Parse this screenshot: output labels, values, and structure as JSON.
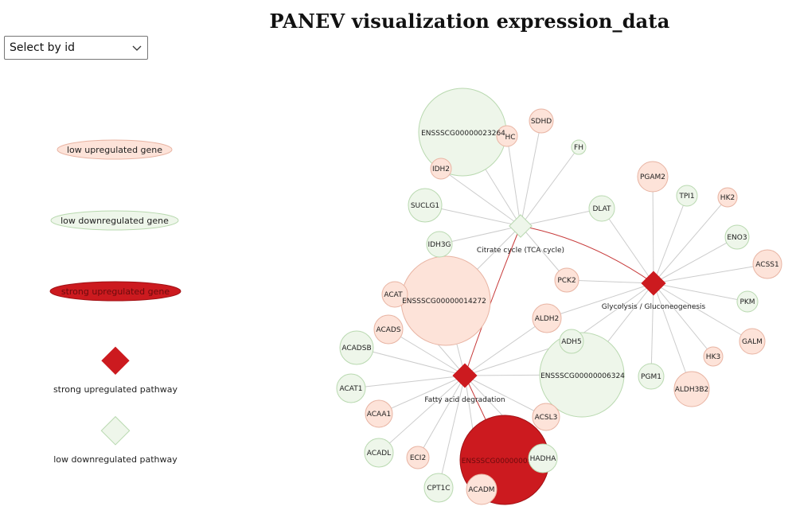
{
  "page": {
    "title": "PANEV visualization expression_data"
  },
  "controls": {
    "select_label": "Select by id",
    "select_icon": "chevron-down-icon"
  },
  "legend": {
    "low_up_gene": "low upregulated gene",
    "low_down_gene": "low downregulated gene",
    "strong_up_gene": "strong upregulated gene",
    "strong_up_pathway": "strong upregulated pathway",
    "low_down_pathway": "low downregulated pathway"
  },
  "colors": {
    "low_up_fill": "#fde3d9",
    "low_up_stroke": "#e8b4a3",
    "low_down_fill": "#eef6ea",
    "low_down_stroke": "#b9d9b0",
    "strong_up": "#cc1a1f",
    "edge_gray": "#cccccc",
    "edge_red": "#c73a3a"
  },
  "pathways": {
    "tca": "Citrate cycle (TCA cycle)",
    "glycolysis": "Glycolysis / Gluconeogenesis",
    "fatty_acid": "Fatty acid degradation"
  },
  "genes": {
    "big1": "ENSSSCG00000023264",
    "big2": "ENSSSCG00000014272",
    "big3": "ENSSSCG00000006324",
    "big4": "ENSSSCG00000009",
    "hc": "HC",
    "sdhd": "SDHD",
    "fh": "FH",
    "idh2": "IDH2",
    "suclg1": "SUCLG1",
    "idh3g": "IDH3G",
    "dlat": "DLAT",
    "pck2": "PCK2",
    "pgam2": "PGAM2",
    "tpi1": "TPI1",
    "hk2": "HK2",
    "eno3": "ENO3",
    "acss1": "ACSS1",
    "pkm": "PKM",
    "galm": "GALM",
    "hk3": "HK3",
    "aldh3b2": "ALDH3B2",
    "pgm1": "PGM1",
    "aldh2": "ALDH2",
    "adh5": "ADH5",
    "acat": "ACAT",
    "acads": "ACADS",
    "acadsb": "ACADSB",
    "acat1": "ACAT1",
    "acaa1": "ACAA1",
    "acadl": "ACADL",
    "eci2": "ECI2",
    "cpt1c": "CPT1C",
    "acadm": "ACADM",
    "hadha": "HADHA",
    "acsl3": "ACSL3"
  }
}
